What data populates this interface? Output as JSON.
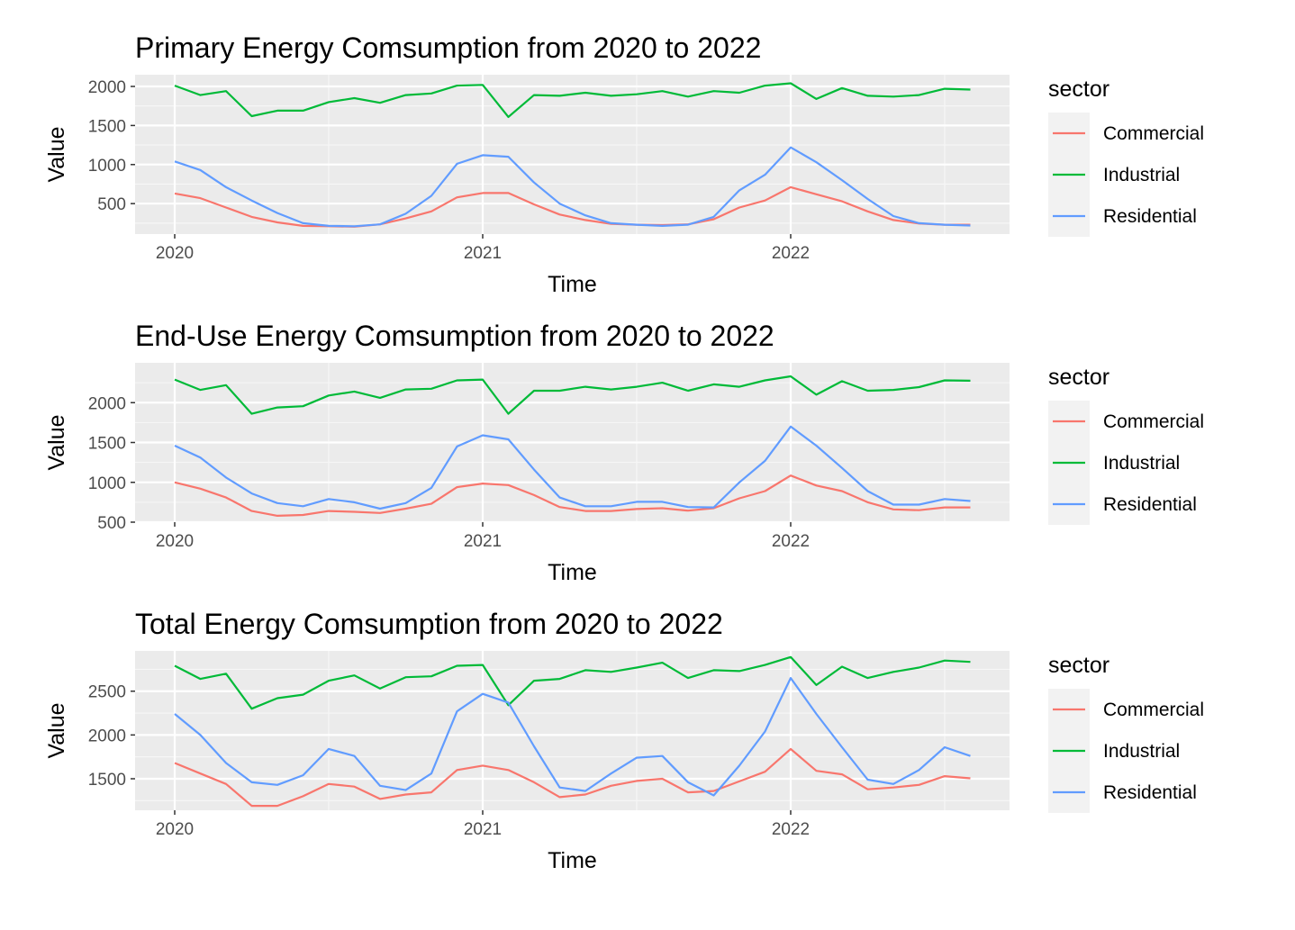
{
  "chart_data": [
    {
      "type": "line",
      "title": "Primary Energy Comsumption from 2020 to 2022",
      "xlabel": "Time",
      "ylabel": "Value",
      "x": [
        "2020-01",
        "2020-02",
        "2020-03",
        "2020-04",
        "2020-05",
        "2020-06",
        "2020-07",
        "2020-08",
        "2020-09",
        "2020-10",
        "2020-11",
        "2020-12",
        "2021-01",
        "2021-02",
        "2021-03",
        "2021-04",
        "2021-05",
        "2021-06",
        "2021-07",
        "2021-08",
        "2021-09",
        "2021-10",
        "2021-11",
        "2021-12",
        "2022-01",
        "2022-02",
        "2022-03",
        "2022-04",
        "2022-05",
        "2022-06",
        "2022-07",
        "2022-08"
      ],
      "x_ticks": [
        "2020",
        "2021",
        "2022"
      ],
      "y_ticks": [
        500,
        1000,
        1500,
        2000
      ],
      "ylim": [
        110,
        2150
      ],
      "grid": true,
      "legend": {
        "title": "sector",
        "position": "right"
      },
      "series": [
        {
          "name": "Commercial",
          "color": "#F8766D",
          "values": [
            630,
            570,
            450,
            330,
            260,
            215,
            210,
            205,
            235,
            310,
            400,
            580,
            635,
            635,
            490,
            360,
            290,
            240,
            230,
            225,
            235,
            300,
            450,
            540,
            710,
            620,
            530,
            400,
            290,
            245,
            230,
            230
          ]
        },
        {
          "name": "Industrial",
          "color": "#00BA38",
          "values": [
            2010,
            1890,
            1940,
            1620,
            1690,
            1690,
            1800,
            1850,
            1790,
            1890,
            1910,
            2010,
            2020,
            1610,
            1890,
            1880,
            1920,
            1880,
            1900,
            1940,
            1870,
            1940,
            1920,
            2010,
            2040,
            1840,
            1980,
            1880,
            1870,
            1890,
            1970,
            1960
          ]
        },
        {
          "name": "Residential",
          "color": "#619CFF",
          "values": [
            1040,
            930,
            710,
            540,
            380,
            250,
            215,
            210,
            235,
            370,
            600,
            1010,
            1120,
            1100,
            770,
            500,
            350,
            250,
            230,
            215,
            230,
            330,
            670,
            870,
            1220,
            1030,
            800,
            560,
            340,
            250,
            230,
            220
          ]
        }
      ]
    },
    {
      "type": "line",
      "title": "End-Use Energy Comsumption from 2020 to 2022",
      "xlabel": "Time",
      "ylabel": "Value",
      "x": [
        "2020-01",
        "2020-02",
        "2020-03",
        "2020-04",
        "2020-05",
        "2020-06",
        "2020-07",
        "2020-08",
        "2020-09",
        "2020-10",
        "2020-11",
        "2020-12",
        "2021-01",
        "2021-02",
        "2021-03",
        "2021-04",
        "2021-05",
        "2021-06",
        "2021-07",
        "2021-08",
        "2021-09",
        "2021-10",
        "2021-11",
        "2021-12",
        "2022-01",
        "2022-02",
        "2022-03",
        "2022-04",
        "2022-05",
        "2022-06",
        "2022-07",
        "2022-08"
      ],
      "x_ticks": [
        "2020",
        "2021",
        "2022"
      ],
      "y_ticks": [
        500,
        1000,
        1500,
        2000
      ],
      "ylim": [
        500,
        2500
      ],
      "grid": true,
      "legend": {
        "title": "sector",
        "position": "right"
      },
      "series": [
        {
          "name": "Commercial",
          "color": "#F8766D",
          "values": [
            1000,
            920,
            810,
            640,
            580,
            590,
            640,
            630,
            615,
            670,
            730,
            940,
            985,
            965,
            840,
            690,
            640,
            640,
            665,
            675,
            645,
            675,
            800,
            890,
            1085,
            960,
            890,
            750,
            660,
            650,
            685,
            685
          ]
        },
        {
          "name": "Industrial",
          "color": "#00BA38",
          "values": [
            2290,
            2160,
            2220,
            1860,
            1940,
            1955,
            2090,
            2140,
            2060,
            2165,
            2175,
            2280,
            2290,
            1860,
            2150,
            2150,
            2200,
            2165,
            2200,
            2250,
            2150,
            2230,
            2200,
            2280,
            2330,
            2100,
            2270,
            2150,
            2160,
            2195,
            2280,
            2275
          ]
        },
        {
          "name": "Residential",
          "color": "#619CFF",
          "values": [
            1460,
            1310,
            1060,
            860,
            740,
            700,
            790,
            750,
            670,
            740,
            930,
            1450,
            1590,
            1540,
            1160,
            810,
            700,
            700,
            755,
            755,
            690,
            685,
            1000,
            1270,
            1700,
            1460,
            1180,
            890,
            720,
            720,
            790,
            765
          ]
        }
      ]
    },
    {
      "type": "line",
      "title": "Total Energy Comsumption from 2020 to 2022",
      "xlabel": "Time",
      "ylabel": "Value",
      "x": [
        "2020-01",
        "2020-02",
        "2020-03",
        "2020-04",
        "2020-05",
        "2020-06",
        "2020-07",
        "2020-08",
        "2020-09",
        "2020-10",
        "2020-11",
        "2020-12",
        "2021-01",
        "2021-02",
        "2021-03",
        "2021-04",
        "2021-05",
        "2021-06",
        "2021-07",
        "2021-08",
        "2021-09",
        "2021-10",
        "2021-11",
        "2021-12",
        "2022-01",
        "2022-02",
        "2022-03",
        "2022-04",
        "2022-05",
        "2022-06",
        "2022-07",
        "2022-08"
      ],
      "x_ticks": [
        "2020",
        "2021",
        "2022"
      ],
      "y_ticks": [
        1500,
        2000,
        2500
      ],
      "ylim": [
        1140,
        2960
      ],
      "grid": true,
      "legend": {
        "title": "sector",
        "position": "right"
      },
      "series": [
        {
          "name": "Commercial",
          "color": "#F8766D",
          "values": [
            1680,
            1560,
            1440,
            1190,
            1190,
            1300,
            1440,
            1410,
            1270,
            1320,
            1345,
            1600,
            1650,
            1600,
            1460,
            1290,
            1320,
            1420,
            1475,
            1500,
            1345,
            1360,
            1470,
            1580,
            1840,
            1590,
            1550,
            1380,
            1400,
            1430,
            1530,
            1505
          ]
        },
        {
          "name": "Industrial",
          "color": "#00BA38",
          "values": [
            2790,
            2640,
            2700,
            2300,
            2420,
            2460,
            2620,
            2680,
            2530,
            2660,
            2670,
            2790,
            2800,
            2340,
            2620,
            2640,
            2740,
            2720,
            2770,
            2825,
            2650,
            2740,
            2730,
            2800,
            2890,
            2570,
            2780,
            2650,
            2720,
            2770,
            2850,
            2835
          ]
        },
        {
          "name": "Residential",
          "color": "#619CFF",
          "values": [
            2240,
            2000,
            1680,
            1460,
            1430,
            1540,
            1840,
            1760,
            1420,
            1370,
            1560,
            2270,
            2470,
            2370,
            1870,
            1400,
            1360,
            1560,
            1740,
            1760,
            1460,
            1310,
            1650,
            2040,
            2650,
            2240,
            1860,
            1490,
            1440,
            1600,
            1860,
            1760
          ]
        }
      ]
    }
  ]
}
